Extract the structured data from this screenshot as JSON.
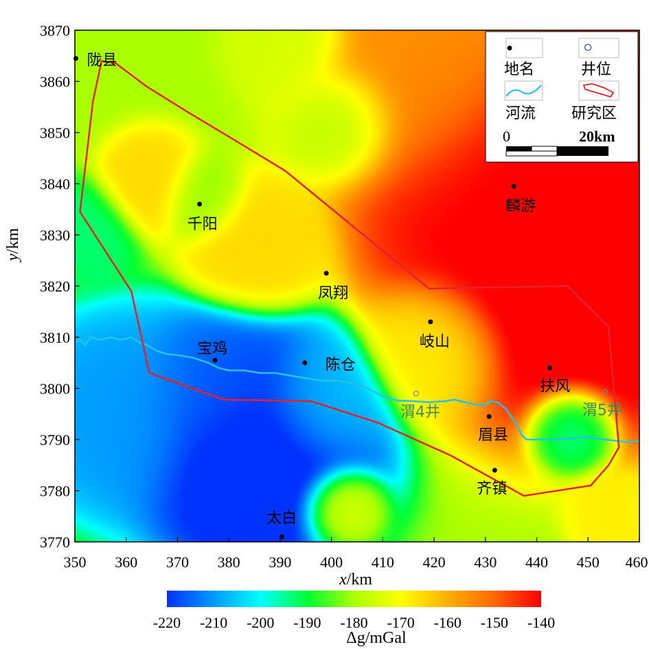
{
  "chart_data": {
    "type": "heatmap",
    "xlabel": "x/km",
    "ylabel": "y/km",
    "xlim": [
      350,
      460
    ],
    "ylim": [
      3770,
      3870
    ],
    "x_ticks": [
      350,
      360,
      370,
      380,
      390,
      400,
      410,
      420,
      430,
      440,
      450,
      460
    ],
    "y_ticks": [
      3770,
      3780,
      3790,
      3800,
      3810,
      3820,
      3830,
      3840,
      3850,
      3860,
      3870
    ],
    "colorbar": {
      "label": "Δg/mGal",
      "ticks": [
        -220,
        -210,
        -200,
        -190,
        -180,
        -170,
        -160,
        -150,
        -140
      ],
      "min": -220,
      "max": -140,
      "colors": [
        "#0033ff",
        "#0099ff",
        "#00ffff",
        "#00ff33",
        "#aaff00",
        "#ffff00",
        "#ffb000",
        "#ff6600",
        "#ff0000"
      ]
    },
    "anomaly_centers": [
      {
        "x": 385,
        "y": 3788,
        "v": -225,
        "r": 14
      },
      {
        "x": 378,
        "y": 3800,
        "v": -215,
        "r": 9
      },
      {
        "x": 360,
        "y": 3795,
        "v": -210,
        "r": 12
      },
      {
        "x": 398,
        "y": 3797,
        "v": -205,
        "r": 8
      },
      {
        "x": 450,
        "y": 3826,
        "v": -135,
        "r": 20
      },
      {
        "x": 435,
        "y": 3838,
        "v": -140,
        "r": 17
      },
      {
        "x": 455,
        "y": 3848,
        "v": -140,
        "r": 14
      },
      {
        "x": 418,
        "y": 3860,
        "v": -155,
        "r": 14
      },
      {
        "x": 365,
        "y": 3840,
        "v": -165,
        "r": 6
      },
      {
        "x": 385,
        "y": 3828,
        "v": -165,
        "r": 8
      },
      {
        "x": 420,
        "y": 3808,
        "v": -168,
        "r": 8
      },
      {
        "x": 403,
        "y": 3852,
        "v": -180,
        "r": 7
      },
      {
        "x": 375,
        "y": 3837,
        "v": -182,
        "r": 5
      },
      {
        "x": 352,
        "y": 3830,
        "v": -193,
        "r": 6
      },
      {
        "x": 402,
        "y": 3777,
        "v": -172,
        "r": 5
      },
      {
        "x": 455,
        "y": 3775,
        "v": -168,
        "r": 5
      },
      {
        "x": 447,
        "y": 3792,
        "v": -195,
        "r": 5
      },
      {
        "x": 392,
        "y": 3868,
        "v": -175,
        "r": 7
      },
      {
        "x": 352,
        "y": 3868,
        "v": -180,
        "r": 6
      }
    ],
    "background_value": -180,
    "places": [
      {
        "name": "陇县",
        "x": 350.2,
        "y": 3864.5,
        "dx": 16,
        "dy": 10,
        "anchor": "start"
      },
      {
        "name": "千阳",
        "x": 374.3,
        "y": 3836,
        "dx": 4,
        "dy": 36,
        "anchor": "middle"
      },
      {
        "name": "凤翔",
        "x": 399,
        "y": 3822.5,
        "dx": 10,
        "dy": 36,
        "anchor": "middle"
      },
      {
        "name": "麟游",
        "x": 435.5,
        "y": 3839.5,
        "dx": 10,
        "dy": 36,
        "anchor": "middle"
      },
      {
        "name": "岐山",
        "x": 419.3,
        "y": 3813,
        "dx": 6,
        "dy": 36,
        "anchor": "middle"
      },
      {
        "name": "宝鸡",
        "x": 377.3,
        "y": 3805.5,
        "dx": -4,
        "dy": -10,
        "anchor": "middle"
      },
      {
        "name": "陈仓",
        "x": 394.8,
        "y": 3805,
        "dx": 52,
        "dy": 10,
        "anchor": "middle"
      },
      {
        "name": "扶风",
        "x": 442.5,
        "y": 3804,
        "dx": 8,
        "dy": 34,
        "anchor": "middle"
      },
      {
        "name": "眉县",
        "x": 430.7,
        "y": 3794.5,
        "dx": 6,
        "dy": 34,
        "anchor": "middle"
      },
      {
        "name": "齐镇",
        "x": 431.8,
        "y": 3784,
        "dx": -4,
        "dy": 34,
        "anchor": "middle"
      },
      {
        "name": "太白",
        "x": 390.3,
        "y": 3771,
        "dx": 0,
        "dy": -20,
        "anchor": "middle"
      }
    ],
    "wells": [
      {
        "name": "渭4井",
        "x": 416.5,
        "y": 3799,
        "dx": 6,
        "dy": 34,
        "anchor": "middle"
      },
      {
        "name": "渭5井",
        "x": 453.3,
        "y": 3799.3,
        "dx": -4,
        "dy": 34,
        "anchor": "middle"
      }
    ],
    "study_area": [
      [
        355.2,
        3864
      ],
      [
        358,
        3863.5
      ],
      [
        364,
        3859
      ],
      [
        372,
        3854
      ],
      [
        382,
        3848
      ],
      [
        391,
        3842.5
      ],
      [
        419,
        3819.5
      ],
      [
        446,
        3820
      ],
      [
        454,
        3812
      ],
      [
        456,
        3788.5
      ],
      [
        454,
        3785
      ],
      [
        450.5,
        3781
      ],
      [
        437.5,
        3779
      ],
      [
        423,
        3787
      ],
      [
        409,
        3793.3
      ],
      [
        396,
        3797.5
      ],
      [
        379,
        3797.8
      ],
      [
        364.5,
        3803
      ],
      [
        361,
        3819
      ],
      [
        351,
        3834.5
      ],
      [
        353.5,
        3856
      ],
      [
        355.2,
        3864
      ]
    ],
    "river": [
      [
        350,
        3809
      ],
      [
        351,
        3809.5
      ],
      [
        352,
        3808.5
      ],
      [
        353,
        3810
      ],
      [
        355,
        3809.5
      ],
      [
        357,
        3810
      ],
      [
        359,
        3809.5
      ],
      [
        361,
        3810
      ],
      [
        362.5,
        3809
      ],
      [
        364,
        3808.5
      ],
      [
        366,
        3807.3
      ],
      [
        368,
        3806.7
      ],
      [
        370,
        3806.5
      ],
      [
        373,
        3806
      ],
      [
        376,
        3805
      ],
      [
        378,
        3804
      ],
      [
        380,
        3803.5
      ],
      [
        383,
        3803.5
      ],
      [
        386,
        3803
      ],
      [
        389,
        3803
      ],
      [
        392,
        3802.5
      ],
      [
        395,
        3802
      ],
      [
        398,
        3801.5
      ],
      [
        401,
        3801.5
      ],
      [
        404,
        3801
      ],
      [
        407,
        3800
      ],
      [
        410,
        3798.5
      ],
      [
        413,
        3797.6
      ],
      [
        416,
        3797.5
      ],
      [
        419,
        3797.3
      ],
      [
        422,
        3797.5
      ],
      [
        424,
        3797.8
      ],
      [
        426,
        3797.3
      ],
      [
        428,
        3796.8
      ],
      [
        429.5,
        3796.6
      ],
      [
        431,
        3797.5
      ],
      [
        432.5,
        3797.2
      ],
      [
        434,
        3796
      ],
      [
        435,
        3794.5
      ],
      [
        436,
        3793
      ],
      [
        437,
        3791
      ],
      [
        438,
        3790
      ],
      [
        441,
        3790
      ],
      [
        444,
        3790
      ],
      [
        447,
        3790.2
      ],
      [
        450,
        3790.5
      ],
      [
        453,
        3790
      ],
      [
        456,
        3789.7
      ],
      [
        458,
        3789.5
      ],
      [
        460,
        3789.7
      ]
    ]
  },
  "legend": {
    "place_label": "地名",
    "well_label": "井位",
    "river_label": "河流",
    "area_label": "研究区",
    "scale_start": "0",
    "scale_end": "20km"
  },
  "colors": {
    "boundary": "#e8202a",
    "river": "#22c4e8",
    "well_marker": "#888888",
    "legend_well_marker": "#3344cc"
  }
}
